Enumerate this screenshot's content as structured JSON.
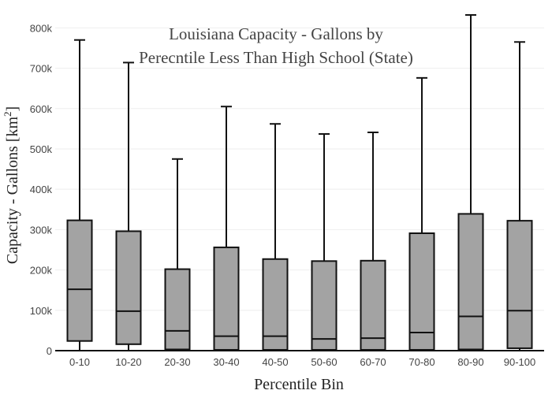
{
  "chart_data": {
    "type": "box",
    "title_lines": [
      "Louisiana Capacity - Gallons by",
      "Perecntile Less Than High School (State)"
    ],
    "xlabel": "Percentile Bin",
    "ylabel": "Capacity - Gallons  [km",
    "ylabel_sup": "2",
    "ylabel_close": "]",
    "ylim": [
      0,
      830000
    ],
    "yticks": [
      0,
      100000,
      200000,
      300000,
      400000,
      500000,
      600000,
      700000,
      800000
    ],
    "ytick_labels": [
      "0",
      "100k",
      "200k",
      "300k",
      "400k",
      "500k",
      "600k",
      "700k",
      "800k"
    ],
    "grid": true,
    "categories": [
      "0-10",
      "10-20",
      "20-30",
      "30-40",
      "40-50",
      "50-60",
      "60-70",
      "70-80",
      "80-90",
      "90-100"
    ],
    "boxes": [
      {
        "min": 0,
        "q1": 24000,
        "median": 152000,
        "q3": 323000,
        "max": 770000
      },
      {
        "min": 0,
        "q1": 16000,
        "median": 98000,
        "q3": 296000,
        "max": 714000
      },
      {
        "min": 0,
        "q1": 3000,
        "median": 49000,
        "q3": 202000,
        "max": 475000
      },
      {
        "min": 0,
        "q1": 2000,
        "median": 36000,
        "q3": 256000,
        "max": 605000
      },
      {
        "min": 0,
        "q1": 2000,
        "median": 36000,
        "q3": 227000,
        "max": 562000
      },
      {
        "min": 0,
        "q1": 2000,
        "median": 29000,
        "q3": 222000,
        "max": 537000
      },
      {
        "min": 0,
        "q1": 2000,
        "median": 31000,
        "q3": 223000,
        "max": 541000
      },
      {
        "min": 0,
        "q1": 2000,
        "median": 45000,
        "q3": 291000,
        "max": 676000
      },
      {
        "min": 0,
        "q1": 3000,
        "median": 85000,
        "q3": 339000,
        "max": 832000
      },
      {
        "min": 0,
        "q1": 6000,
        "median": 99000,
        "q3": 322000,
        "max": 765000
      }
    ],
    "colors": {
      "box_fill": "#a3a3a3",
      "box_stroke": "#111111",
      "grid": "#eeeeee"
    }
  }
}
